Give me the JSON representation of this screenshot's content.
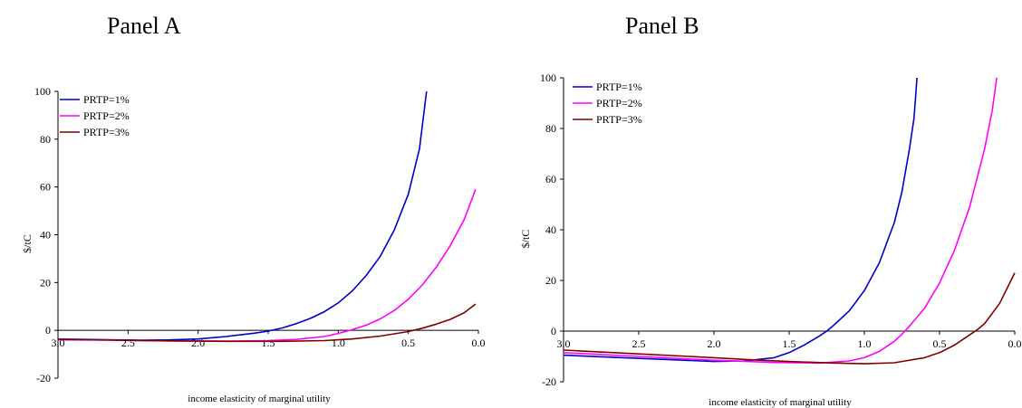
{
  "chart_data": [
    {
      "type": "line",
      "title": "Panel A",
      "xlabel": "income elasticity of marginal utility",
      "ylabel": "$/tC",
      "xlim": [
        3.0,
        0.0
      ],
      "ylim": [
        -20,
        100
      ],
      "x_ticks": [
        "3.0",
        "2.5",
        "2.0",
        "1.5",
        "1.0",
        "0.5",
        "0.0"
      ],
      "y_ticks": [
        "-20",
        "0",
        "20",
        "40",
        "60",
        "80",
        "100"
      ],
      "legend": "top-left",
      "grid": false,
      "series": [
        {
          "name": "PRTP=1%",
          "color": "#0000cc",
          "points": [
            [
              3.0,
              -3.6
            ],
            [
              2.8,
              -3.8
            ],
            [
              2.6,
              -4.0
            ],
            [
              2.4,
              -4.1
            ],
            [
              2.2,
              -4.0
            ],
            [
              2.0,
              -3.6
            ],
            [
              1.8,
              -2.6
            ],
            [
              1.6,
              -1.2
            ],
            [
              1.5,
              -0.3
            ],
            [
              1.4,
              1.0
            ],
            [
              1.3,
              2.8
            ],
            [
              1.2,
              5.0
            ],
            [
              1.1,
              7.8
            ],
            [
              1.0,
              11.5
            ],
            [
              0.9,
              16.5
            ],
            [
              0.8,
              23.0
            ],
            [
              0.7,
              31.0
            ],
            [
              0.6,
              42.0
            ],
            [
              0.5,
              57.0
            ],
            [
              0.42,
              76.0
            ],
            [
              0.37,
              100.0
            ]
          ]
        },
        {
          "name": "PRTP=2%",
          "color": "#ff00ff",
          "points": [
            [
              3.0,
              -3.8
            ],
            [
              2.6,
              -4.1
            ],
            [
              2.2,
              -4.4
            ],
            [
              1.8,
              -4.5
            ],
            [
              1.5,
              -4.3
            ],
            [
              1.3,
              -3.8
            ],
            [
              1.1,
              -2.6
            ],
            [
              1.0,
              -1.3
            ],
            [
              0.9,
              0.3
            ],
            [
              0.8,
              2.2
            ],
            [
              0.7,
              4.8
            ],
            [
              0.6,
              8.3
            ],
            [
              0.5,
              13.0
            ],
            [
              0.4,
              19.0
            ],
            [
              0.3,
              26.5
            ],
            [
              0.2,
              35.5
            ],
            [
              0.1,
              46.5
            ],
            [
              0.02,
              59.0
            ]
          ]
        },
        {
          "name": "PRTP=3%",
          "color": "#800000",
          "points": [
            [
              3.0,
              -3.9
            ],
            [
              2.6,
              -4.1
            ],
            [
              2.2,
              -4.4
            ],
            [
              1.8,
              -4.6
            ],
            [
              1.4,
              -4.6
            ],
            [
              1.1,
              -4.3
            ],
            [
              0.9,
              -3.6
            ],
            [
              0.7,
              -2.4
            ],
            [
              0.5,
              -0.5
            ],
            [
              0.4,
              0.9
            ],
            [
              0.3,
              2.6
            ],
            [
              0.2,
              4.6
            ],
            [
              0.1,
              7.4
            ],
            [
              0.02,
              11.0
            ]
          ]
        }
      ]
    },
    {
      "type": "line",
      "title": "Panel B",
      "xlabel": "income elasticity of marginal utility",
      "ylabel": "$/tC",
      "xlim": [
        3.0,
        0.0
      ],
      "ylim": [
        -20,
        100
      ],
      "x_ticks": [
        "3.0",
        "2.5",
        "2.0",
        "1.5",
        "1.0",
        "0.5",
        "0.0"
      ],
      "y_ticks": [
        "-20",
        "0",
        "20",
        "40",
        "60",
        "80",
        "100"
      ],
      "legend": "top-left",
      "grid": false,
      "series": [
        {
          "name": "PRTP=1%",
          "color": "#0000cc",
          "points": [
            [
              3.0,
              -9.5
            ],
            [
              2.6,
              -10.5
            ],
            [
              2.2,
              -11.5
            ],
            [
              2.0,
              -12.0
            ],
            [
              1.8,
              -11.8
            ],
            [
              1.6,
              -10.5
            ],
            [
              1.5,
              -8.5
            ],
            [
              1.4,
              -5.5
            ],
            [
              1.3,
              -2.0
            ],
            [
              1.25,
              0.0
            ],
            [
              1.2,
              2.5
            ],
            [
              1.1,
              8.0
            ],
            [
              1.0,
              16.0
            ],
            [
              0.9,
              27.0
            ],
            [
              0.8,
              43.0
            ],
            [
              0.75,
              55.0
            ],
            [
              0.7,
              72.0
            ],
            [
              0.67,
              84.0
            ],
            [
              0.65,
              100.0
            ]
          ]
        },
        {
          "name": "PRTP=2%",
          "color": "#ff00ff",
          "points": [
            [
              3.0,
              -8.5
            ],
            [
              2.5,
              -10.0
            ],
            [
              2.0,
              -11.5
            ],
            [
              1.6,
              -12.4
            ],
            [
              1.3,
              -12.6
            ],
            [
              1.1,
              -11.8
            ],
            [
              1.0,
              -10.5
            ],
            [
              0.9,
              -8.0
            ],
            [
              0.8,
              -4.0
            ],
            [
              0.75,
              -1.2
            ],
            [
              0.7,
              2.0
            ],
            [
              0.6,
              9.0
            ],
            [
              0.5,
              19.0
            ],
            [
              0.4,
              32.0
            ],
            [
              0.3,
              49.0
            ],
            [
              0.2,
              72.0
            ],
            [
              0.15,
              87.0
            ],
            [
              0.12,
              100.0
            ]
          ]
        },
        {
          "name": "PRTP=3%",
          "color": "#800000",
          "points": [
            [
              3.0,
              -7.5
            ],
            [
              2.5,
              -9.0
            ],
            [
              2.0,
              -10.5
            ],
            [
              1.7,
              -11.5
            ],
            [
              1.5,
              -12.0
            ],
            [
              1.2,
              -12.6
            ],
            [
              1.0,
              -12.9
            ],
            [
              0.8,
              -12.5
            ],
            [
              0.6,
              -10.5
            ],
            [
              0.5,
              -8.5
            ],
            [
              0.4,
              -5.5
            ],
            [
              0.3,
              -1.5
            ],
            [
              0.25,
              0.5
            ],
            [
              0.2,
              3.0
            ],
            [
              0.1,
              11.0
            ],
            [
              0.0,
              23.0
            ]
          ]
        }
      ]
    }
  ]
}
